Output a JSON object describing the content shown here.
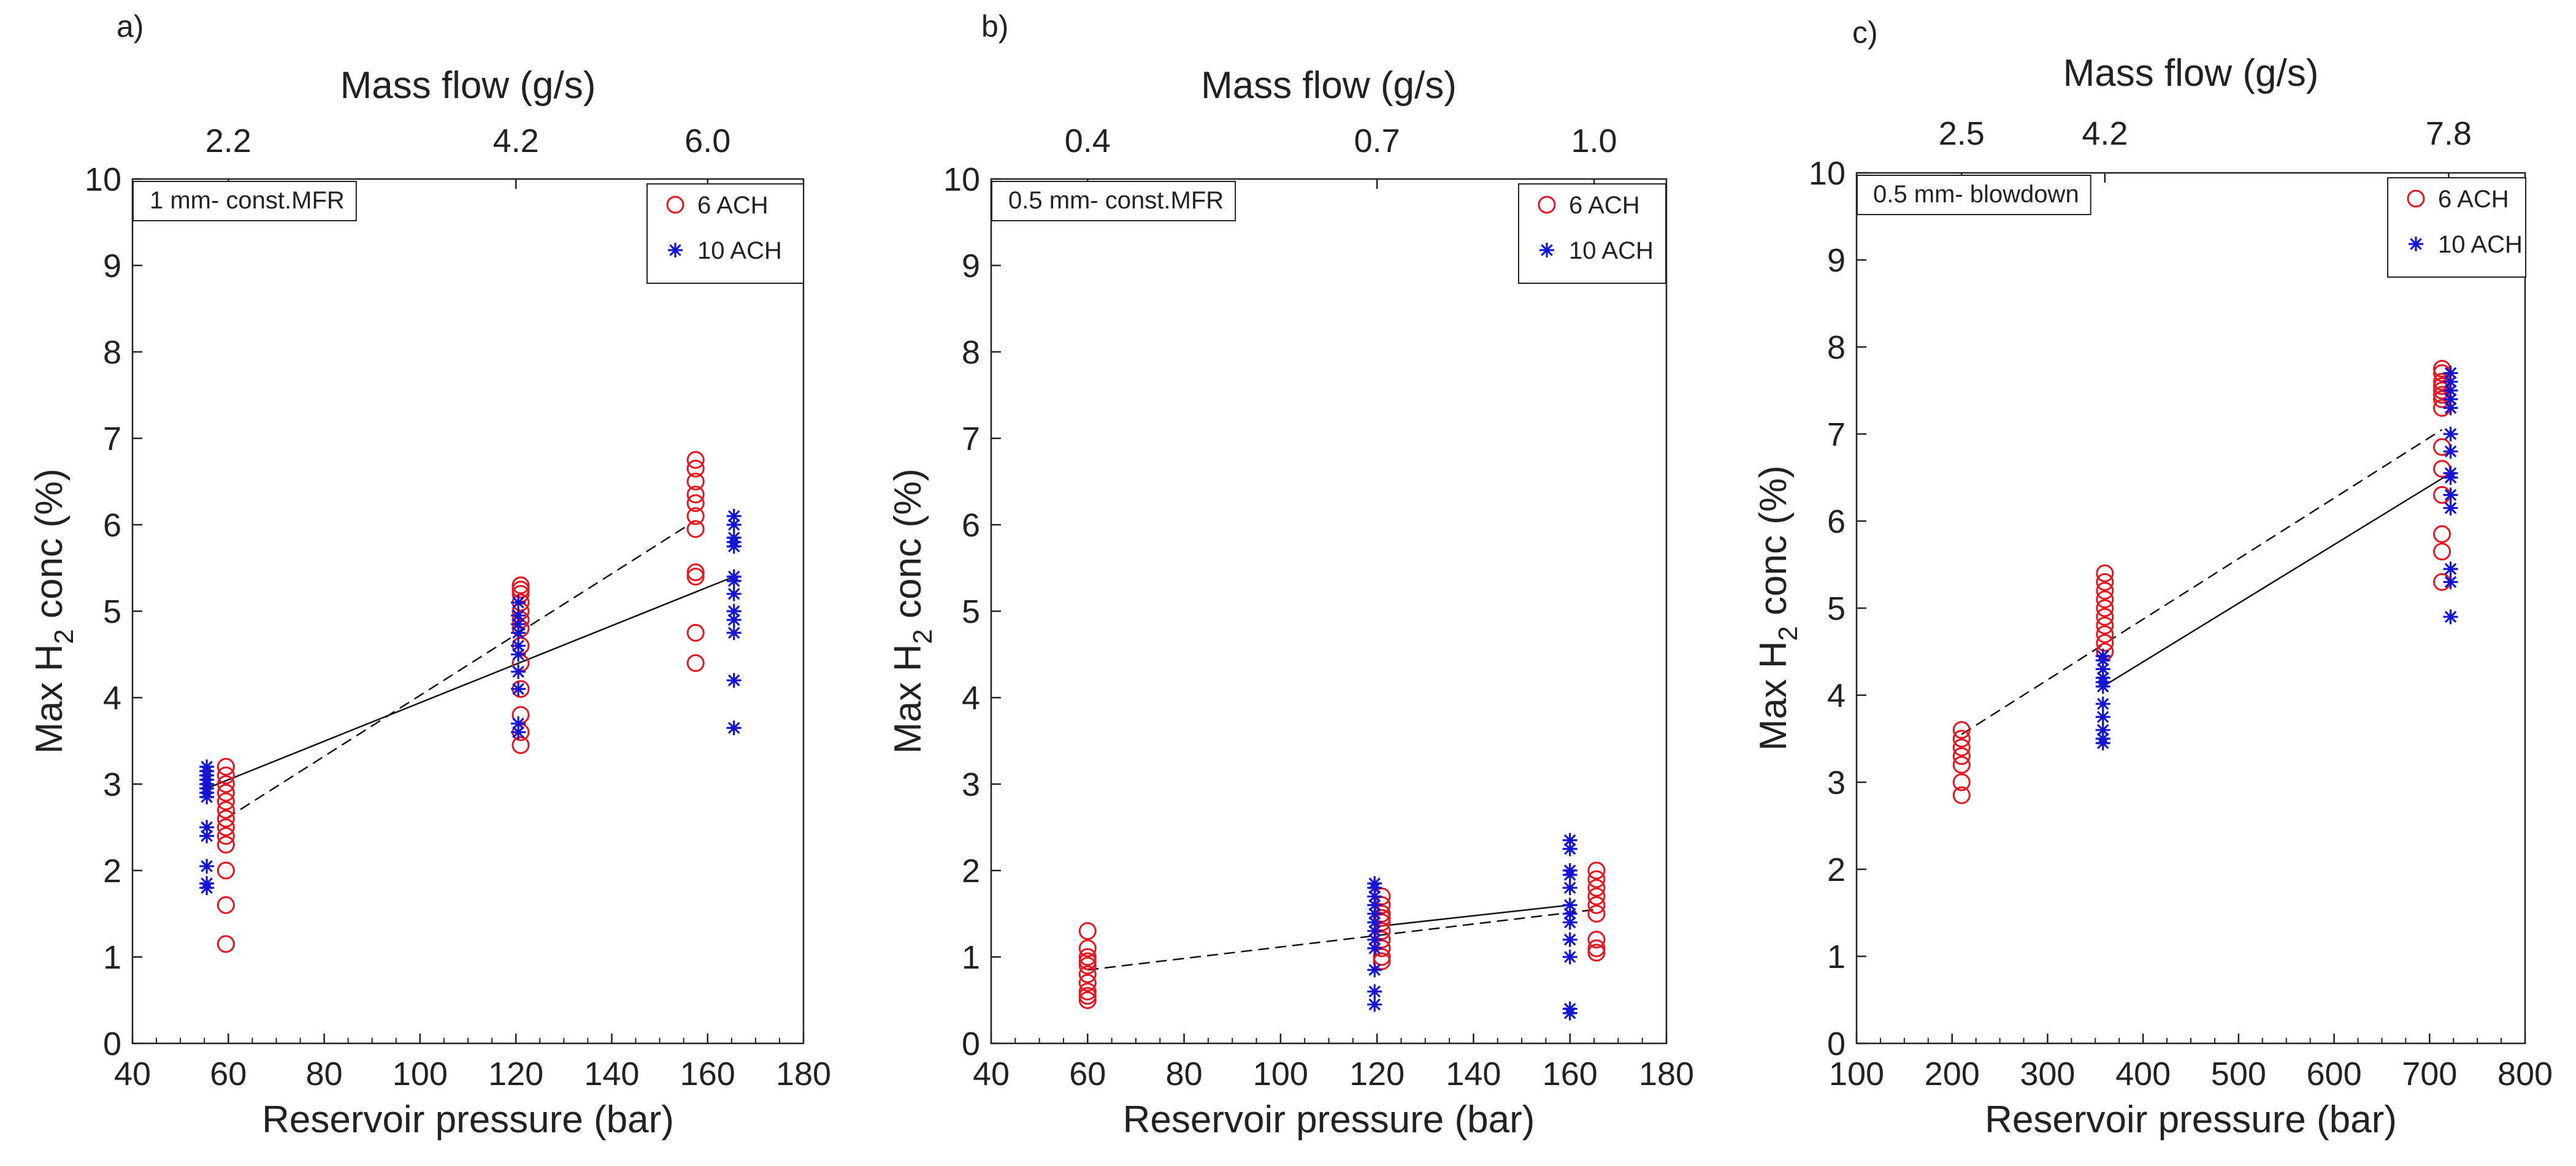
{
  "figure": {
    "colors": {
      "six_ach": "#e8141e",
      "ten_ach": "#1414d6",
      "axis": "#222222",
      "fit": "#111111"
    }
  },
  "chart_data": [
    {
      "type": "scatter",
      "panel": "a)",
      "annotation": "1 mm- const.MFR",
      "xlabel": "Reservoir pressure (bar)",
      "ylabel_pre": "Max H",
      "ylabel_sub": "2",
      "ylabel_post": " conc (%)",
      "top_xlabel": "Mass flow (g/s)",
      "xlim": [
        40,
        180
      ],
      "ylim": [
        0,
        10
      ],
      "xticks": [
        40,
        60,
        80,
        100,
        120,
        140,
        160,
        180
      ],
      "yticks": [
        0,
        1,
        2,
        3,
        4,
        5,
        6,
        7,
        8,
        9,
        10
      ],
      "xticks_minor_step": 5,
      "top_ticks": [
        {
          "x": 60,
          "label": "2.2"
        },
        {
          "x": 120,
          "label": "4.2"
        },
        {
          "x": 160,
          "label": "6.0"
        }
      ],
      "legend": [
        {
          "marker": "o",
          "label": "6  ACH"
        },
        {
          "marker": "*",
          "label": "10 ACH"
        }
      ],
      "series": [
        {
          "name": "6  ACH",
          "marker": "o",
          "points": [
            [
              59.5,
              3.2
            ],
            [
              59.5,
              3.1
            ],
            [
              59.5,
              3.0
            ],
            [
              59.5,
              2.9
            ],
            [
              59.5,
              2.8
            ],
            [
              59.5,
              2.7
            ],
            [
              59.5,
              2.6
            ],
            [
              59.5,
              2.5
            ],
            [
              59.5,
              2.4
            ],
            [
              59.5,
              2.3
            ],
            [
              59.5,
              2.0
            ],
            [
              59.5,
              1.6
            ],
            [
              59.5,
              1.15
            ],
            [
              121,
              5.3
            ],
            [
              121,
              5.25
            ],
            [
              121,
              5.2
            ],
            [
              121,
              5.1
            ],
            [
              121,
              5.0
            ],
            [
              121,
              4.9
            ],
            [
              121,
              4.8
            ],
            [
              121,
              4.6
            ],
            [
              121,
              4.4
            ],
            [
              121,
              4.1
            ],
            [
              121,
              3.8
            ],
            [
              121,
              3.6
            ],
            [
              121,
              3.45
            ],
            [
              157.5,
              6.75
            ],
            [
              157.5,
              6.65
            ],
            [
              157.5,
              6.5
            ],
            [
              157.5,
              6.35
            ],
            [
              157.5,
              6.25
            ],
            [
              157.5,
              6.1
            ],
            [
              157.5,
              5.95
            ],
            [
              157.5,
              5.45
            ],
            [
              157.5,
              5.4
            ],
            [
              157.5,
              4.75
            ],
            [
              157.5,
              4.4
            ]
          ]
        },
        {
          "name": "10 ACH",
          "marker": "*",
          "points": [
            [
              55.5,
              3.2
            ],
            [
              55.5,
              3.15
            ],
            [
              55.5,
              3.1
            ],
            [
              55.5,
              3.05
            ],
            [
              55.5,
              3.0
            ],
            [
              55.5,
              2.95
            ],
            [
              55.5,
              2.9
            ],
            [
              55.5,
              2.85
            ],
            [
              55.5,
              2.5
            ],
            [
              55.5,
              2.4
            ],
            [
              55.5,
              2.05
            ],
            [
              55.5,
              1.85
            ],
            [
              55.5,
              1.8
            ],
            [
              120.5,
              5.1
            ],
            [
              120.5,
              4.95
            ],
            [
              120.5,
              4.85
            ],
            [
              120.5,
              4.75
            ],
            [
              120.5,
              4.6
            ],
            [
              120.5,
              4.5
            ],
            [
              120.5,
              4.3
            ],
            [
              120.5,
              4.1
            ],
            [
              120.5,
              3.7
            ],
            [
              120.5,
              3.6
            ],
            [
              165.5,
              6.1
            ],
            [
              165.5,
              6.0
            ],
            [
              165.5,
              5.85
            ],
            [
              165.5,
              5.8
            ],
            [
              165.5,
              5.75
            ],
            [
              165.5,
              5.4
            ],
            [
              165.5,
              5.35
            ],
            [
              165.5,
              5.2
            ],
            [
              165.5,
              5.0
            ],
            [
              165.5,
              4.9
            ],
            [
              165.5,
              4.75
            ],
            [
              165.5,
              4.2
            ],
            [
              165.5,
              3.65
            ]
          ]
        }
      ],
      "fit_lines": [
        {
          "style": "dashed",
          "points": [
            [
              59.5,
              2.6
            ],
            [
              157.5,
              6.05
            ]
          ]
        },
        {
          "style": "solid",
          "points": [
            [
              55.5,
              2.95
            ],
            [
              165.5,
              5.4
            ]
          ]
        }
      ]
    },
    {
      "type": "scatter",
      "panel": "b)",
      "annotation": "0.5 mm- const.MFR",
      "xlabel": "Reservoir pressure (bar)",
      "ylabel_pre": "Max H",
      "ylabel_sub": "2",
      "ylabel_post": " conc (%)",
      "top_xlabel": "Mass flow (g/s)",
      "xlim": [
        40,
        180
      ],
      "ylim": [
        0,
        10
      ],
      "xticks": [
        40,
        60,
        80,
        100,
        120,
        140,
        160,
        180
      ],
      "yticks": [
        0,
        1,
        2,
        3,
        4,
        5,
        6,
        7,
        8,
        9,
        10
      ],
      "xticks_minor_step": 5,
      "top_ticks": [
        {
          "x": 60,
          "label": "0.4"
        },
        {
          "x": 120,
          "label": "0.7"
        },
        {
          "x": 165,
          "label": "1.0"
        }
      ],
      "legend": [
        {
          "marker": "o",
          "label": "6  ACH"
        },
        {
          "marker": "*",
          "label": "10 ACH"
        }
      ],
      "series": [
        {
          "name": "6  ACH",
          "marker": "o",
          "points": [
            [
              60,
              1.3
            ],
            [
              60,
              1.1
            ],
            [
              60,
              1.0
            ],
            [
              60,
              0.95
            ],
            [
              60,
              0.9
            ],
            [
              60,
              0.8
            ],
            [
              60,
              0.7
            ],
            [
              60,
              0.6
            ],
            [
              60,
              0.55
            ],
            [
              60,
              0.5
            ],
            [
              121,
              1.7
            ],
            [
              121,
              1.6
            ],
            [
              121,
              1.5
            ],
            [
              121,
              1.45
            ],
            [
              121,
              1.4
            ],
            [
              121,
              1.3
            ],
            [
              121,
              1.2
            ],
            [
              121,
              1.1
            ],
            [
              121,
              1.0
            ],
            [
              121,
              0.95
            ],
            [
              165.5,
              2.0
            ],
            [
              165.5,
              1.9
            ],
            [
              165.5,
              1.8
            ],
            [
              165.5,
              1.7
            ],
            [
              165.5,
              1.6
            ],
            [
              165.5,
              1.5
            ],
            [
              165.5,
              1.2
            ],
            [
              165.5,
              1.1
            ],
            [
              165.5,
              1.05
            ]
          ]
        },
        {
          "name": "10 ACH",
          "marker": "*",
          "points": [
            [
              119.5,
              1.85
            ],
            [
              119.5,
              1.8
            ],
            [
              119.5,
              1.7
            ],
            [
              119.5,
              1.6
            ],
            [
              119.5,
              1.5
            ],
            [
              119.5,
              1.4
            ],
            [
              119.5,
              1.3
            ],
            [
              119.5,
              1.2
            ],
            [
              119.5,
              1.1
            ],
            [
              119.5,
              0.85
            ],
            [
              119.5,
              0.6
            ],
            [
              119.5,
              0.45
            ],
            [
              160,
              2.35
            ],
            [
              160,
              2.25
            ],
            [
              160,
              2.0
            ],
            [
              160,
              1.95
            ],
            [
              160,
              1.8
            ],
            [
              160,
              1.6
            ],
            [
              160,
              1.5
            ],
            [
              160,
              1.4
            ],
            [
              160,
              1.2
            ],
            [
              160,
              1.0
            ],
            [
              160,
              0.4
            ],
            [
              160,
              0.35
            ]
          ]
        }
      ],
      "fit_lines": [
        {
          "style": "dashed",
          "points": [
            [
              60,
              0.85
            ],
            [
              165.5,
              1.55
            ]
          ]
        },
        {
          "style": "solid",
          "points": [
            [
              119.5,
              1.35
            ],
            [
              160,
              1.6
            ]
          ]
        }
      ]
    },
    {
      "type": "scatter",
      "panel": "c)",
      "annotation": "0.5 mm- blowdown",
      "xlabel": "Reservoir pressure (bar)",
      "ylabel_pre": "Max H",
      "ylabel_sub": "2",
      "ylabel_post": " conc (%)",
      "top_xlabel": "Mass flow (g/s)",
      "xlim": [
        100,
        800
      ],
      "ylim": [
        0,
        10
      ],
      "xticks": [
        100,
        200,
        300,
        400,
        500,
        600,
        700,
        800
      ],
      "yticks": [
        0,
        1,
        2,
        3,
        4,
        5,
        6,
        7,
        8,
        9,
        10
      ],
      "xticks_minor_step": 25,
      "top_ticks": [
        {
          "x": 210,
          "label": "2.5"
        },
        {
          "x": 360,
          "label": "4.2"
        },
        {
          "x": 720,
          "label": "7.8"
        }
      ],
      "legend": [
        {
          "marker": "o",
          "label": "6  ACH"
        },
        {
          "marker": "*",
          "label": "10 ACH"
        }
      ],
      "series": [
        {
          "name": "6  ACH",
          "marker": "o",
          "points": [
            [
              210,
              3.6
            ],
            [
              210,
              3.5
            ],
            [
              210,
              3.4
            ],
            [
              210,
              3.3
            ],
            [
              210,
              3.2
            ],
            [
              210,
              3.0
            ],
            [
              210,
              2.85
            ],
            [
              360,
              5.4
            ],
            [
              360,
              5.3
            ],
            [
              360,
              5.2
            ],
            [
              360,
              5.1
            ],
            [
              360,
              5.0
            ],
            [
              360,
              4.9
            ],
            [
              360,
              4.8
            ],
            [
              360,
              4.7
            ],
            [
              360,
              4.6
            ],
            [
              360,
              4.5
            ],
            [
              713,
              7.75
            ],
            [
              713,
              7.7
            ],
            [
              713,
              7.6
            ],
            [
              713,
              7.55
            ],
            [
              713,
              7.5
            ],
            [
              713,
              7.45
            ],
            [
              713,
              7.4
            ],
            [
              713,
              7.3
            ],
            [
              713,
              6.85
            ],
            [
              713,
              6.6
            ],
            [
              713,
              6.3
            ],
            [
              713,
              5.85
            ],
            [
              713,
              5.65
            ],
            [
              713,
              5.3
            ]
          ]
        },
        {
          "name": "10 ACH",
          "marker": "*",
          "points": [
            [
              358,
              4.45
            ],
            [
              358,
              4.4
            ],
            [
              358,
              4.3
            ],
            [
              358,
              4.2
            ],
            [
              358,
              4.15
            ],
            [
              358,
              4.1
            ],
            [
              358,
              3.9
            ],
            [
              358,
              3.75
            ],
            [
              358,
              3.6
            ],
            [
              358,
              3.5
            ],
            [
              358,
              3.45
            ],
            [
              722,
              7.7
            ],
            [
              722,
              7.6
            ],
            [
              722,
              7.5
            ],
            [
              722,
              7.4
            ],
            [
              722,
              7.3
            ],
            [
              722,
              7.0
            ],
            [
              722,
              6.8
            ],
            [
              722,
              6.55
            ],
            [
              722,
              6.5
            ],
            [
              722,
              6.3
            ],
            [
              722,
              6.15
            ],
            [
              722,
              5.45
            ],
            [
              722,
              5.3
            ],
            [
              722,
              4.9
            ]
          ]
        }
      ],
      "fit_lines": [
        {
          "style": "dashed",
          "points": [
            [
              210,
              3.55
            ],
            [
              713,
              7.05
            ]
          ]
        },
        {
          "style": "solid",
          "points": [
            [
              358,
              4.1
            ],
            [
              722,
              6.55
            ]
          ]
        }
      ]
    }
  ]
}
